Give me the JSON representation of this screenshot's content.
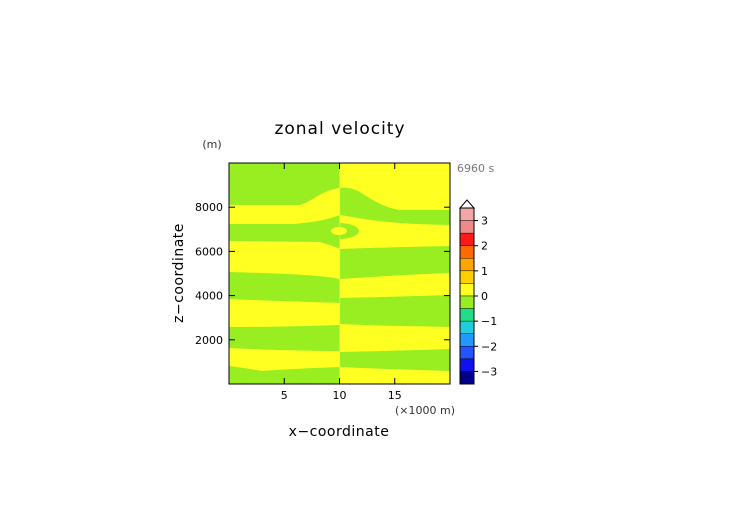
{
  "chart_data": {
    "type": "heatmap",
    "title": "zonal velocity",
    "xlabel": "x−coordinate",
    "ylabel": "z−coordinate",
    "x_unit": "(×1000 m)",
    "y_unit": "(m)",
    "time_label": "6960 s",
    "xlim": [
      0,
      20
    ],
    "ylim": [
      0,
      10000
    ],
    "x_ticks": [
      5,
      10,
      15
    ],
    "x_tick_labels": [
      "5",
      "10",
      "15"
    ],
    "y_ticks": [
      2000,
      4000,
      6000,
      8000
    ],
    "y_tick_labels": [
      "2000",
      "4000",
      "6000",
      "8000"
    ],
    "colorbar": {
      "range": [
        -3.5,
        3.5
      ],
      "tick_values": [
        3,
        2,
        1,
        0,
        -1,
        -2,
        -3
      ],
      "tick_labels": [
        "3",
        "2",
        "1",
        "0",
        "−1",
        "−2",
        "−3"
      ],
      "levels": [
        {
          "lo": 3.0,
          "hi": 3.5,
          "color": "#f4a6a6"
        },
        {
          "lo": 2.5,
          "hi": 3.0,
          "color": "#f08a8a"
        },
        {
          "lo": 2.0,
          "hi": 2.5,
          "color": "#ff1a1a"
        },
        {
          "lo": 1.5,
          "hi": 2.0,
          "color": "#ff6a00"
        },
        {
          "lo": 1.0,
          "hi": 1.5,
          "color": "#ffa500"
        },
        {
          "lo": 0.5,
          "hi": 1.0,
          "color": "#ffd000"
        },
        {
          "lo": 0.0,
          "hi": 0.5,
          "color": "#ffff22"
        },
        {
          "lo": -0.5,
          "hi": 0.0,
          "color": "#99ee22"
        },
        {
          "lo": -1.0,
          "hi": -0.5,
          "color": "#22dd88"
        },
        {
          "lo": -1.5,
          "hi": -1.0,
          "color": "#22ccdd"
        },
        {
          "lo": -2.0,
          "hi": -1.5,
          "color": "#2299ff"
        },
        {
          "lo": -2.5,
          "hi": -2.0,
          "color": "#2255ff"
        },
        {
          "lo": -3.0,
          "hi": -2.5,
          "color": "#1111ee"
        },
        {
          "lo": -3.5,
          "hi": -3.0,
          "color": "#000088"
        }
      ]
    },
    "field_colors": {
      "negative": "#99ee22",
      "positive": "#ffff22"
    },
    "field_regions": {
      "left_half": {
        "x_range": [
          0,
          10
        ],
        "yellow_bands_z": [
          [
            8200,
            9000
          ],
          [
            6250,
            7850
          ],
          [
            4600,
            5800
          ],
          [
            2700,
            3800
          ],
          [
            800,
            1500
          ]
        ]
      },
      "right_half": {
        "x_range": [
          10,
          20
        ],
        "yellow_bands_z": [
          [
            7900,
            9950
          ],
          [
            6500,
            7500
          ],
          [
            4950,
            5800
          ],
          [
            2500,
            3550
          ],
          [
            350,
            1500
          ]
        ]
      },
      "upper_green_region_z_base": 8000,
      "center_eddy": {
        "x": 9.5,
        "z": 6950,
        "values": "negative"
      }
    }
  }
}
